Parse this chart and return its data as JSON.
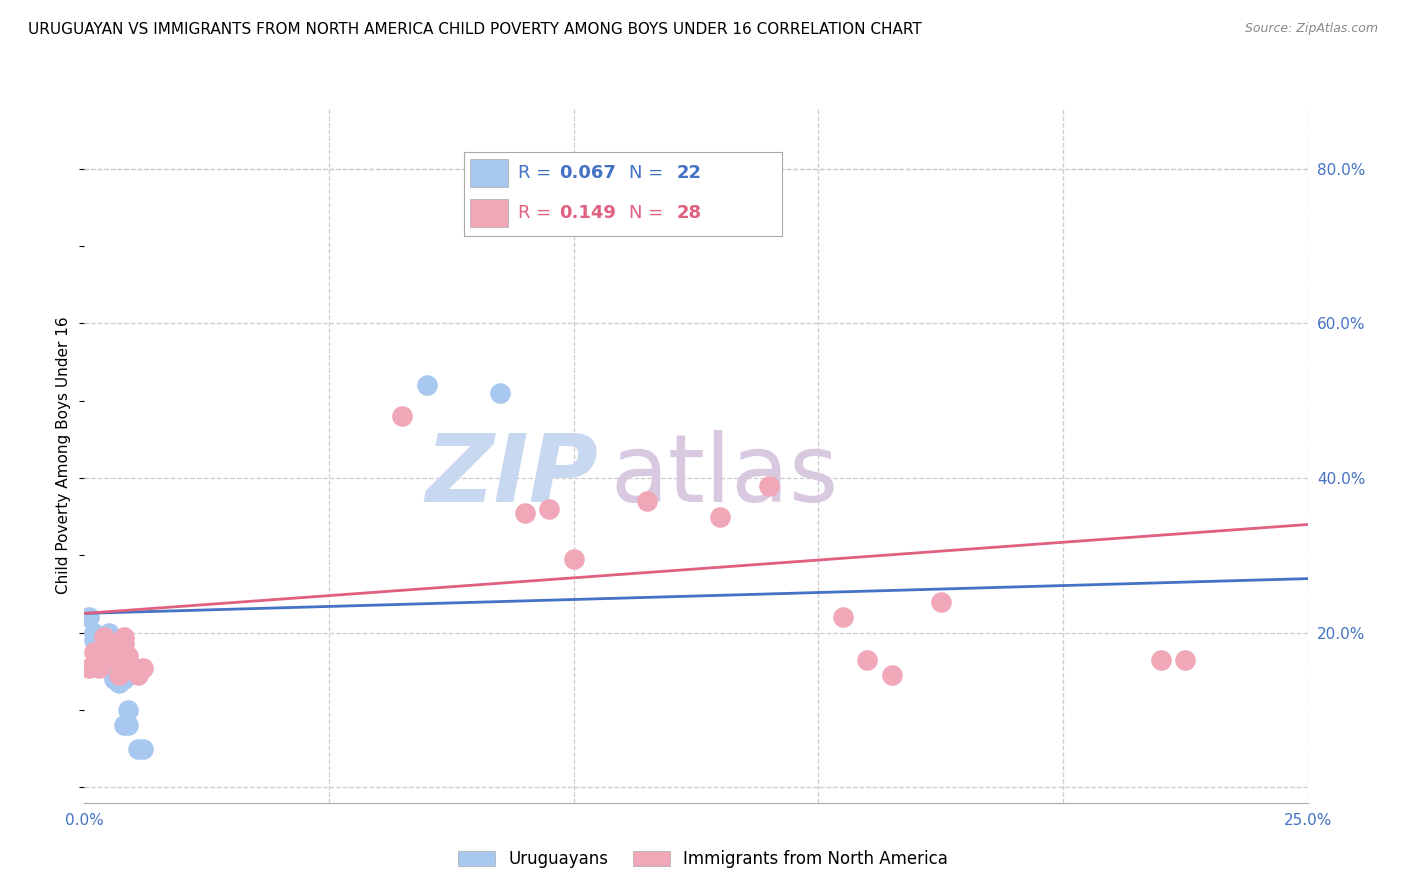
{
  "title": "URUGUAYAN VS IMMIGRANTS FROM NORTH AMERICA CHILD POVERTY AMONG BOYS UNDER 16 CORRELATION CHART",
  "source": "Source: ZipAtlas.com",
  "ylabel": "Child Poverty Among Boys Under 16",
  "xlim": [
    0.0,
    0.25
  ],
  "ylim": [
    -0.02,
    0.88
  ],
  "xticks": [
    0.0,
    0.05,
    0.1,
    0.15,
    0.2,
    0.25
  ],
  "xtick_labels": [
    "0.0%",
    "",
    "",
    "",
    "",
    "25.0%"
  ],
  "ytick_right": [
    0.0,
    0.2,
    0.4,
    0.6,
    0.8
  ],
  "ytick_right_labels": [
    "",
    "20.0%",
    "40.0%",
    "60.0%",
    "80.0%"
  ],
  "series1_label": "Uruguayans",
  "series2_label": "Immigrants from North America",
  "series1_color": "#a8c8f0",
  "series2_color": "#f0a8b8",
  "series1_line_color": "#4472c4",
  "series2_line_color": "#e06080",
  "series1_R": "0.067",
  "series1_N": "22",
  "series2_R": "0.149",
  "series2_N": "28",
  "watermark_zip": "ZIP",
  "watermark_atlas": "atlas",
  "watermark_color_zip": "#c8d8f0",
  "watermark_color_atlas": "#d8c8e0",
  "background_color": "#ffffff",
  "grid_color": "#cccccc",
  "title_fontsize": 11,
  "axis_label_fontsize": 11,
  "tick_fontsize": 11,
  "legend_fontsize": 13,
  "series1_x": [
    0.001,
    0.002,
    0.002,
    0.003,
    0.003,
    0.004,
    0.004,
    0.005,
    0.005,
    0.006,
    0.006,
    0.007,
    0.007,
    0.008,
    0.008,
    0.009,
    0.009,
    0.01,
    0.011,
    0.012,
    0.07,
    0.085
  ],
  "series1_y": [
    0.22,
    0.19,
    0.2,
    0.165,
    0.175,
    0.17,
    0.175,
    0.155,
    0.2,
    0.14,
    0.155,
    0.135,
    0.175,
    0.08,
    0.14,
    0.1,
    0.08,
    0.15,
    0.05,
    0.05,
    0.52,
    0.51
  ],
  "series2_x": [
    0.001,
    0.002,
    0.003,
    0.003,
    0.004,
    0.005,
    0.006,
    0.006,
    0.007,
    0.008,
    0.008,
    0.009,
    0.01,
    0.011,
    0.012,
    0.065,
    0.09,
    0.095,
    0.1,
    0.115,
    0.13,
    0.14,
    0.155,
    0.16,
    0.165,
    0.175,
    0.22,
    0.225
  ],
  "series2_y": [
    0.155,
    0.175,
    0.155,
    0.175,
    0.195,
    0.175,
    0.165,
    0.185,
    0.145,
    0.195,
    0.185,
    0.17,
    0.155,
    0.145,
    0.155,
    0.48,
    0.355,
    0.36,
    0.295,
    0.37,
    0.35,
    0.39,
    0.22,
    0.165,
    0.145,
    0.24,
    0.165,
    0.165
  ],
  "trend1_x0": 0.0,
  "trend1_y0": 0.225,
  "trend1_x1": 0.25,
  "trend1_y1": 0.27,
  "trend2_x0": 0.0,
  "trend2_y0": 0.225,
  "trend2_x1": 0.25,
  "trend2_y1": 0.34
}
